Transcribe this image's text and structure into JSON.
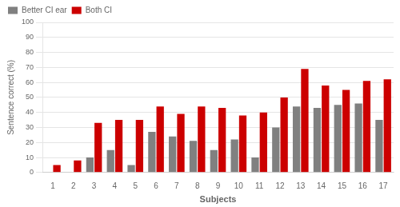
{
  "chart_data": {
    "type": "bar",
    "categories": [
      "1",
      "2",
      "3",
      "4",
      "5",
      "6",
      "7",
      "8",
      "9",
      "10",
      "11",
      "12",
      "13",
      "14",
      "15",
      "16",
      "17"
    ],
    "series": [
      {
        "name": "Better CI ear",
        "color": "#808080",
        "values": [
          0,
          0,
          10,
          15,
          5,
          27,
          24,
          21,
          15,
          22,
          10,
          30,
          44,
          43,
          45,
          46,
          35
        ]
      },
      {
        "name": "Both CI",
        "color": "#cc0000",
        "values": [
          5,
          8,
          33,
          35,
          35,
          44,
          39,
          44,
          43,
          38,
          40,
          50,
          69,
          58,
          55,
          61,
          62
        ]
      }
    ],
    "xlabel": "Subjects",
    "ylabel": "Sentence correct (%)",
    "ylim": [
      0,
      100
    ],
    "yticks": [
      0,
      10,
      20,
      30,
      40,
      50,
      60,
      70,
      80,
      90,
      100
    ],
    "grid": true,
    "legend": "upper left"
  }
}
